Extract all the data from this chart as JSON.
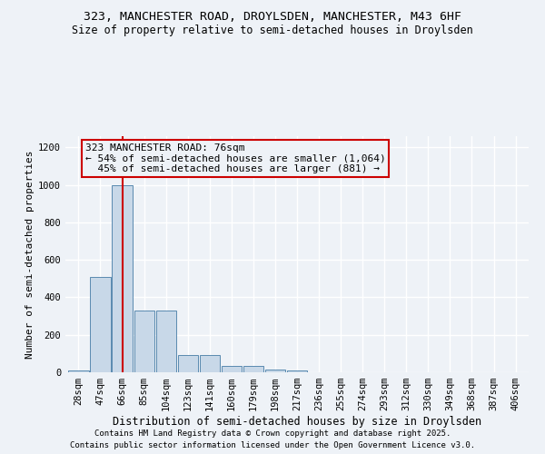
{
  "title1": "323, MANCHESTER ROAD, DROYLSDEN, MANCHESTER, M43 6HF",
  "title2": "Size of property relative to semi-detached houses in Droylsden",
  "xlabel": "Distribution of semi-detached houses by size in Droylsden",
  "ylabel": "Number of semi-detached properties",
  "footnote1": "Contains HM Land Registry data © Crown copyright and database right 2025.",
  "footnote2": "Contains public sector information licensed under the Open Government Licence v3.0.",
  "bin_labels": [
    "28sqm",
    "47sqm",
    "66sqm",
    "85sqm",
    "104sqm",
    "123sqm",
    "141sqm",
    "160sqm",
    "179sqm",
    "198sqm",
    "217sqm",
    "236sqm",
    "255sqm",
    "274sqm",
    "293sqm",
    "312sqm",
    "330sqm",
    "349sqm",
    "368sqm",
    "387sqm",
    "406sqm"
  ],
  "bar_heights": [
    10,
    510,
    1000,
    330,
    330,
    90,
    90,
    35,
    35,
    15,
    10,
    0,
    0,
    0,
    0,
    0,
    0,
    0,
    0,
    0,
    0
  ],
  "bar_color": "#c8d8e8",
  "bar_edge_color": "#5a8ab0",
  "property_bin_index": 2,
  "property_line_color": "#cc0000",
  "annotation_line1": "323 MANCHESTER ROAD: 76sqm",
  "annotation_line2": "← 54% of semi-detached houses are smaller (1,064)",
  "annotation_line3": "  45% of semi-detached houses are larger (881) →",
  "annotation_box_color": "#cc0000",
  "ylim": [
    0,
    1260
  ],
  "yticks": [
    0,
    200,
    400,
    600,
    800,
    1000,
    1200
  ],
  "background_color": "#eef2f7",
  "grid_color": "#ffffff",
  "title1_fontsize": 9.5,
  "title2_fontsize": 8.5,
  "tick_fontsize": 7.5,
  "ylabel_fontsize": 8,
  "xlabel_fontsize": 8.5,
  "annotation_fontsize": 8,
  "footnote_fontsize": 6.5
}
